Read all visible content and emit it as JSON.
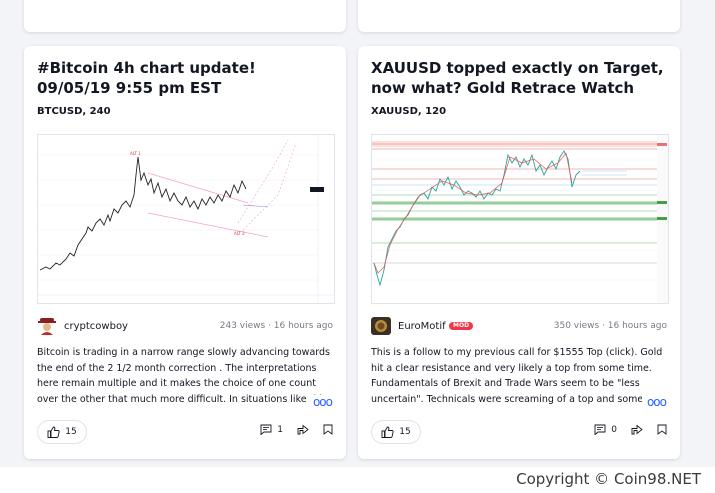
{
  "cards": [
    {
      "title": "#Bitcoin 4h chart update! 09/05/19 9:55 pm EST",
      "symbol": "BTCUSD, 240",
      "author": "cryptcowboy",
      "badge": "",
      "meta": "243 views · 16 hours ago",
      "description": "Bitcoin is trading in a narrow range slowly advancing towards the end of the 2 1/2 month correction . The interpretations here remain multiple and it makes the choice of one count over the other that much more difficult. In situations like this we sl",
      "more": "ooo",
      "likes": "15",
      "comments": "1",
      "chart_labels": {
        "alt1": "ALT 1",
        "alt2": "ALT 2"
      }
    },
    {
      "title": "XAUUSD topped exactly on Target, now what? Gold Retrace Watch",
      "symbol": "XAUUSD, 120",
      "author": "EuroMotif",
      "badge": "MOD",
      "meta": "350 views · 16 hours ago",
      "description": "This is a follow to my previous call for $1555 Top (click). Gold hit a clear resistance and very likely a top from some time. Fundamentals of Brexit and Trade Wars seem to be \"less uncertain\". Technicals were screaming of a top and some",
      "more": "ooo",
      "likes": "15",
      "comments": "0"
    }
  ],
  "footer": {
    "copyright": "Copyright © Coin98.NET"
  },
  "colors": {
    "accent": "#2962ff",
    "badge": "#f23645",
    "muted": "#787b86"
  },
  "icons": [
    "thumbs-up-icon",
    "comment-icon",
    "share-icon",
    "bookmark-icon",
    "more-dots-icon"
  ]
}
